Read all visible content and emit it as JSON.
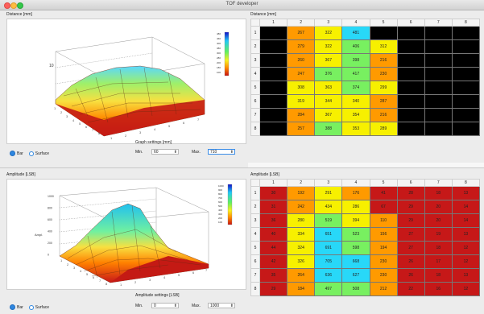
{
  "window": {
    "title": "TOF developer"
  },
  "colors": {
    "red": "#c61818",
    "orange": "#ff9a00",
    "yellow": "#f7f000",
    "green": "#78f060",
    "cyan": "#28d8f8",
    "black": "#000000"
  },
  "distance": {
    "plot_label": "Distance [mm]",
    "table_label": "Distance [mm]",
    "colorbar_labels": [
      "480",
      "460",
      "400",
      "380",
      "300",
      "280",
      "200",
      "180",
      "100"
    ],
    "axis_tick": "10",
    "display_modes": {
      "bar": "Bar",
      "surface": "Surface"
    },
    "settings": {
      "title": "Graph settings [mm]",
      "min_label": "Min.",
      "min_value": "60",
      "max_label": "Max.",
      "max_value": "710"
    },
    "columns": [
      "1",
      "2",
      "3",
      "4",
      "5",
      "6",
      "7",
      "8"
    ],
    "rows": [
      {
        "label": "1",
        "cells": [
          {
            "v": "",
            "c": "black"
          },
          {
            "v": "267",
            "c": "orange"
          },
          {
            "v": "322",
            "c": "yellow"
          },
          {
            "v": "481",
            "c": "cyan"
          },
          {
            "v": "",
            "c": "black"
          },
          {
            "v": "",
            "c": "black"
          },
          {
            "v": "",
            "c": "black"
          },
          {
            "v": "",
            "c": "black"
          }
        ]
      },
      {
        "label": "2",
        "cells": [
          {
            "v": "",
            "c": "black"
          },
          {
            "v": "279",
            "c": "orange"
          },
          {
            "v": "322",
            "c": "yellow"
          },
          {
            "v": "406",
            "c": "green"
          },
          {
            "v": "312",
            "c": "yellow"
          },
          {
            "v": "",
            "c": "black"
          },
          {
            "v": "",
            "c": "black"
          },
          {
            "v": "",
            "c": "black"
          }
        ]
      },
      {
        "label": "3",
        "cells": [
          {
            "v": "",
            "c": "black"
          },
          {
            "v": "260",
            "c": "orange"
          },
          {
            "v": "367",
            "c": "yellow"
          },
          {
            "v": "398",
            "c": "green"
          },
          {
            "v": "216",
            "c": "orange"
          },
          {
            "v": "",
            "c": "black"
          },
          {
            "v": "",
            "c": "black"
          },
          {
            "v": "",
            "c": "black"
          }
        ]
      },
      {
        "label": "4",
        "cells": [
          {
            "v": "",
            "c": "black"
          },
          {
            "v": "247",
            "c": "orange"
          },
          {
            "v": "376",
            "c": "green"
          },
          {
            "v": "417",
            "c": "green"
          },
          {
            "v": "230",
            "c": "orange"
          },
          {
            "v": "",
            "c": "black"
          },
          {
            "v": "",
            "c": "black"
          },
          {
            "v": "",
            "c": "black"
          }
        ]
      },
      {
        "label": "5",
        "cells": [
          {
            "v": "",
            "c": "black"
          },
          {
            "v": "308",
            "c": "yellow"
          },
          {
            "v": "363",
            "c": "yellow"
          },
          {
            "v": "374",
            "c": "green"
          },
          {
            "v": "299",
            "c": "yellow"
          },
          {
            "v": "",
            "c": "black"
          },
          {
            "v": "",
            "c": "black"
          },
          {
            "v": "",
            "c": "black"
          }
        ]
      },
      {
        "label": "6",
        "cells": [
          {
            "v": "",
            "c": "black"
          },
          {
            "v": "319",
            "c": "yellow"
          },
          {
            "v": "344",
            "c": "yellow"
          },
          {
            "v": "340",
            "c": "yellow"
          },
          {
            "v": "287",
            "c": "orange"
          },
          {
            "v": "",
            "c": "black"
          },
          {
            "v": "",
            "c": "black"
          },
          {
            "v": "",
            "c": "black"
          }
        ]
      },
      {
        "label": "7",
        "cells": [
          {
            "v": "",
            "c": "black"
          },
          {
            "v": "284",
            "c": "orange"
          },
          {
            "v": "367",
            "c": "yellow"
          },
          {
            "v": "354",
            "c": "yellow"
          },
          {
            "v": "216",
            "c": "orange"
          },
          {
            "v": "",
            "c": "black"
          },
          {
            "v": "",
            "c": "black"
          },
          {
            "v": "",
            "c": "black"
          }
        ]
      },
      {
        "label": "8",
        "cells": [
          {
            "v": "",
            "c": "black"
          },
          {
            "v": "257",
            "c": "orange"
          },
          {
            "v": "388",
            "c": "green"
          },
          {
            "v": "353",
            "c": "yellow"
          },
          {
            "v": "289",
            "c": "yellow"
          },
          {
            "v": "",
            "c": "black"
          },
          {
            "v": "",
            "c": "black"
          },
          {
            "v": "",
            "c": "black"
          }
        ]
      }
    ]
  },
  "amplitude": {
    "plot_label": "Amplitude [LSB]",
    "table_label": "Amplitude [LSB]",
    "colorbar_labels": [
      "1000",
      "900",
      "800",
      "700",
      "600",
      "500",
      "400",
      "300",
      "200",
      "100"
    ],
    "axis_label": "Ampl.",
    "axis_ticks": [
      "1000",
      "800",
      "600",
      "400",
      "200",
      "0"
    ],
    "display_modes": {
      "bar": "Bar",
      "surface": "Surface"
    },
    "settings": {
      "title": "Amplitude settings [LSB]",
      "min_label": "Min.",
      "min_value": "0",
      "max_label": "Max.",
      "max_value": "1000"
    },
    "columns": [
      "1",
      "2",
      "3",
      "4",
      "5",
      "6",
      "7",
      "8"
    ],
    "rows": [
      {
        "label": "1",
        "cells": [
          {
            "v": "30",
            "c": "red"
          },
          {
            "v": "192",
            "c": "orange"
          },
          {
            "v": "291",
            "c": "yellow"
          },
          {
            "v": "176",
            "c": "orange"
          },
          {
            "v": "41",
            "c": "red"
          },
          {
            "v": "28",
            "c": "red"
          },
          {
            "v": "18",
            "c": "red"
          },
          {
            "v": "13",
            "c": "red"
          }
        ]
      },
      {
        "label": "2",
        "cells": [
          {
            "v": "31",
            "c": "red"
          },
          {
            "v": "242",
            "c": "orange"
          },
          {
            "v": "434",
            "c": "yellow"
          },
          {
            "v": "286",
            "c": "yellow"
          },
          {
            "v": "67",
            "c": "red"
          },
          {
            "v": "29",
            "c": "red"
          },
          {
            "v": "20",
            "c": "red"
          },
          {
            "v": "14",
            "c": "red"
          }
        ]
      },
      {
        "label": "3",
        "cells": [
          {
            "v": "36",
            "c": "red"
          },
          {
            "v": "280",
            "c": "yellow"
          },
          {
            "v": "519",
            "c": "green"
          },
          {
            "v": "394",
            "c": "yellow"
          },
          {
            "v": "110",
            "c": "orange"
          },
          {
            "v": "29",
            "c": "red"
          },
          {
            "v": "20",
            "c": "red"
          },
          {
            "v": "14",
            "c": "red"
          }
        ]
      },
      {
        "label": "4",
        "cells": [
          {
            "v": "40",
            "c": "red"
          },
          {
            "v": "334",
            "c": "yellow"
          },
          {
            "v": "651",
            "c": "cyan"
          },
          {
            "v": "523",
            "c": "green"
          },
          {
            "v": "156",
            "c": "orange"
          },
          {
            "v": "27",
            "c": "red"
          },
          {
            "v": "19",
            "c": "red"
          },
          {
            "v": "13",
            "c": "red"
          }
        ]
      },
      {
        "label": "5",
        "cells": [
          {
            "v": "44",
            "c": "red"
          },
          {
            "v": "324",
            "c": "yellow"
          },
          {
            "v": "691",
            "c": "cyan"
          },
          {
            "v": "598",
            "c": "green"
          },
          {
            "v": "194",
            "c": "orange"
          },
          {
            "v": "27",
            "c": "red"
          },
          {
            "v": "18",
            "c": "red"
          },
          {
            "v": "12",
            "c": "red"
          }
        ]
      },
      {
        "label": "6",
        "cells": [
          {
            "v": "42",
            "c": "red"
          },
          {
            "v": "326",
            "c": "yellow"
          },
          {
            "v": "705",
            "c": "cyan"
          },
          {
            "v": "668",
            "c": "cyan"
          },
          {
            "v": "230",
            "c": "orange"
          },
          {
            "v": "26",
            "c": "red"
          },
          {
            "v": "17",
            "c": "red"
          },
          {
            "v": "12",
            "c": "red"
          }
        ]
      },
      {
        "label": "7",
        "cells": [
          {
            "v": "35",
            "c": "red"
          },
          {
            "v": "264",
            "c": "orange"
          },
          {
            "v": "636",
            "c": "cyan"
          },
          {
            "v": "627",
            "c": "cyan"
          },
          {
            "v": "230",
            "c": "orange"
          },
          {
            "v": "26",
            "c": "red"
          },
          {
            "v": "18",
            "c": "red"
          },
          {
            "v": "13",
            "c": "red"
          }
        ]
      },
      {
        "label": "8",
        "cells": [
          {
            "v": "29",
            "c": "red"
          },
          {
            "v": "184",
            "c": "orange"
          },
          {
            "v": "497",
            "c": "green"
          },
          {
            "v": "508",
            "c": "green"
          },
          {
            "v": "212",
            "c": "orange"
          },
          {
            "v": "22",
            "c": "red"
          },
          {
            "v": "16",
            "c": "red"
          },
          {
            "v": "12",
            "c": "red"
          }
        ]
      }
    ]
  }
}
